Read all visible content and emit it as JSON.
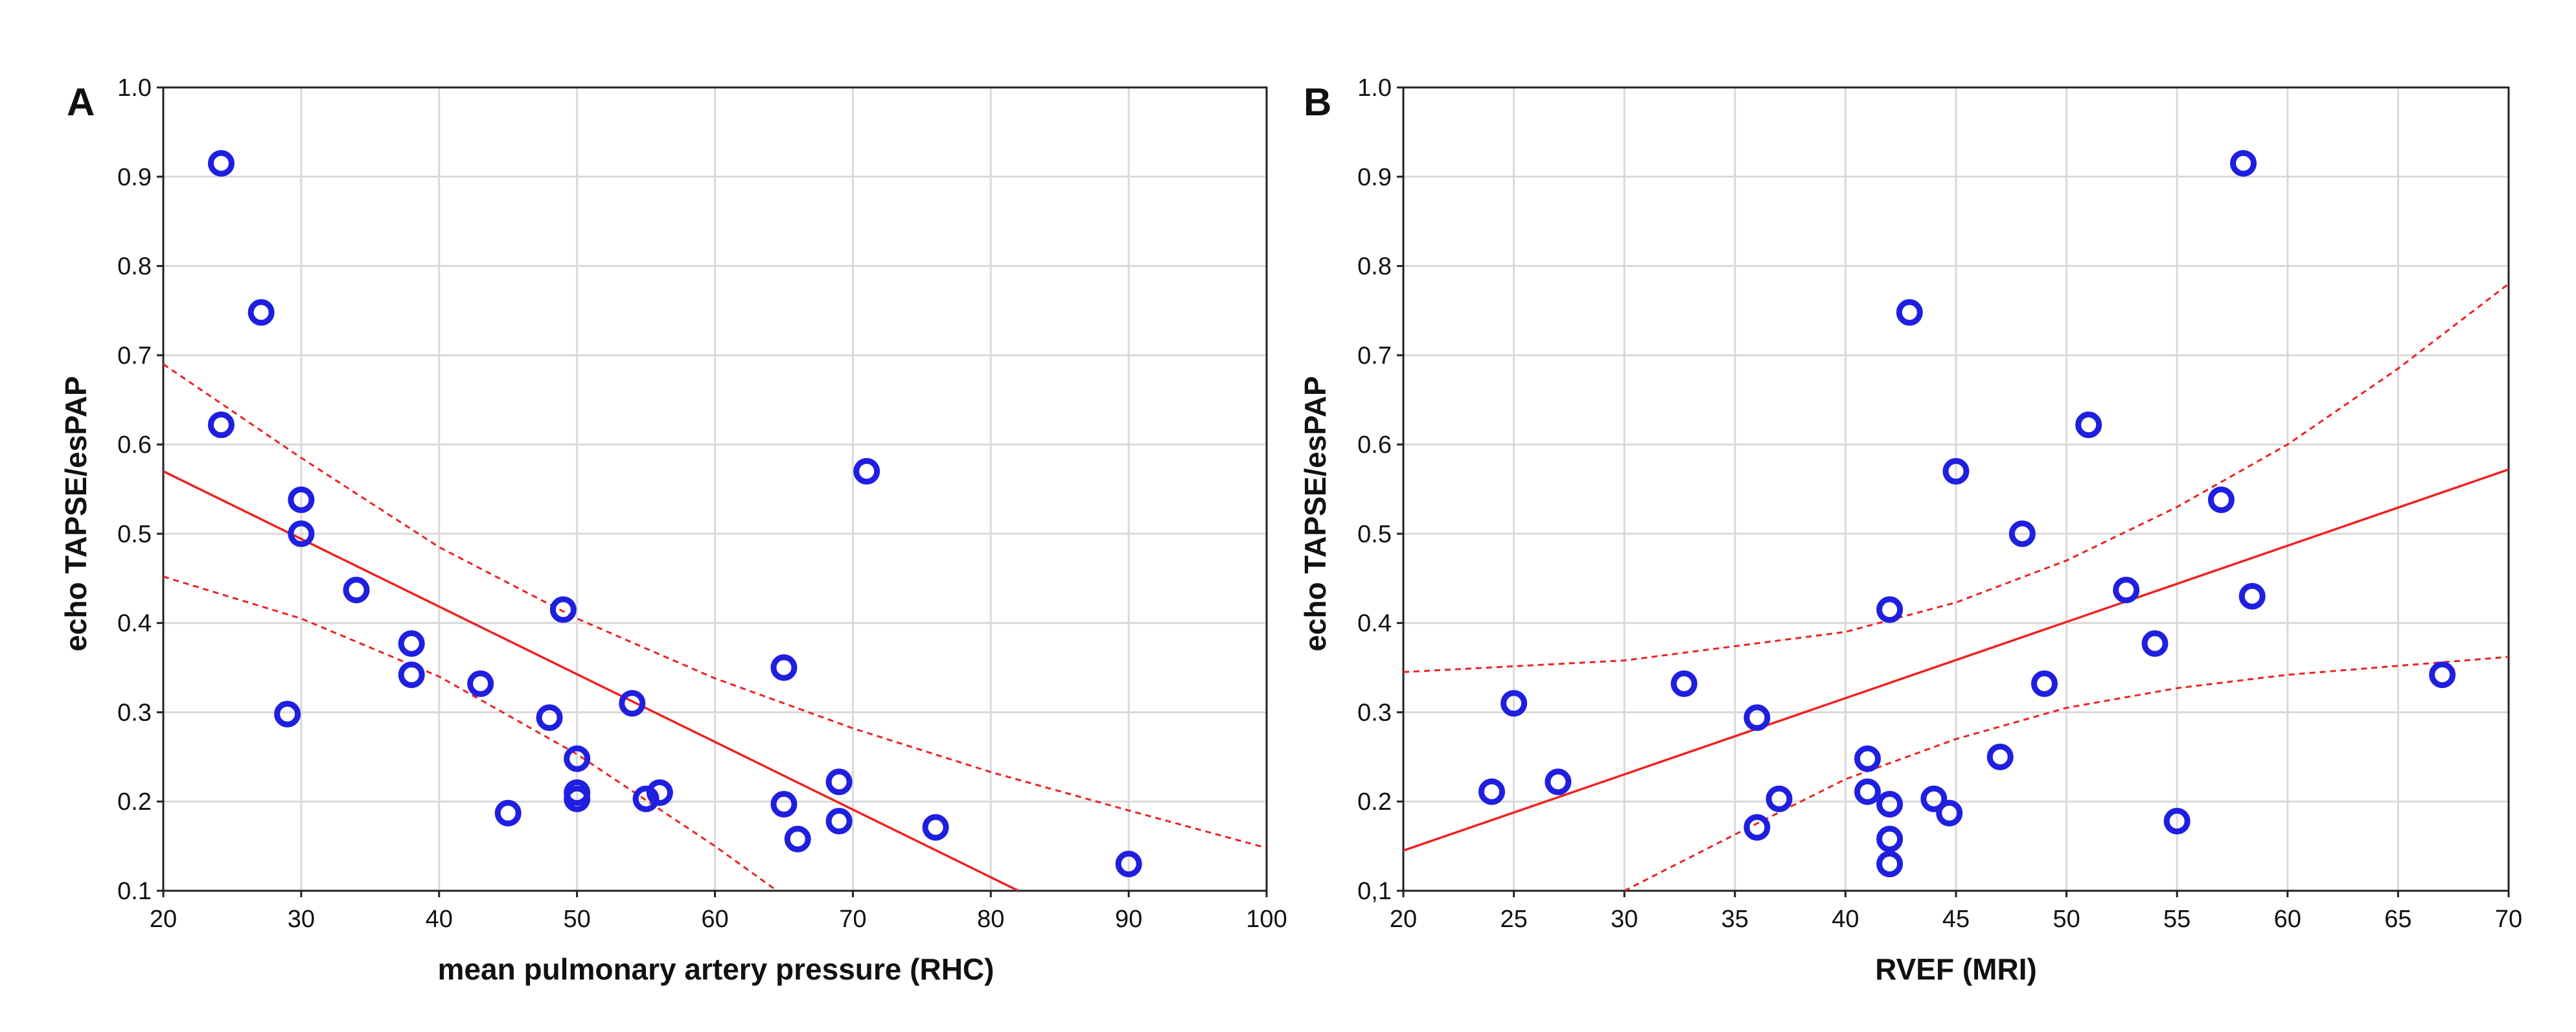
{
  "colors": {
    "points": "#1f1fe0",
    "fit": "#ee2222",
    "grid": "#d9d9d9"
  },
  "chart_data": [
    {
      "type": "scatter",
      "panel_label": "A",
      "title": "",
      "xlabel": "mean pulmonary artery pressure (RHC)",
      "ylabel": "echo TAPSE/esPAP",
      "xlim": [
        20,
        100
      ],
      "ylim": [
        0.1,
        1.0
      ],
      "xticks": [
        20,
        30,
        40,
        50,
        60,
        70,
        80,
        90,
        100
      ],
      "xtick_labels": [
        "20",
        "30",
        "40",
        "50",
        "60",
        "70",
        "80",
        "90",
        "100"
      ],
      "yticks": [
        0.1,
        0.2,
        0.3,
        0.4,
        0.5,
        0.6,
        0.7,
        0.8,
        0.9,
        1.0
      ],
      "ytick_labels": [
        "0.1",
        "0.2",
        "0.3",
        "0.4",
        "0.5",
        "0.6",
        "0.7",
        "0.8",
        "0.9",
        "1.0"
      ],
      "grid": true,
      "points": [
        [
          24.2,
          0.915
        ],
        [
          27.1,
          0.748
        ],
        [
          24.2,
          0.622
        ],
        [
          30.0,
          0.538
        ],
        [
          30.0,
          0.5
        ],
        [
          34.0,
          0.437
        ],
        [
          29.0,
          0.298
        ],
        [
          38.0,
          0.377
        ],
        [
          38.0,
          0.342
        ],
        [
          43.0,
          0.332
        ],
        [
          48.0,
          0.294
        ],
        [
          49.0,
          0.415
        ],
        [
          50.0,
          0.248
        ],
        [
          50.0,
          0.21
        ],
        [
          50.0,
          0.203
        ],
        [
          45.0,
          0.187
        ],
        [
          54.0,
          0.31
        ],
        [
          55.0,
          0.203
        ],
        [
          56.0,
          0.21
        ],
        [
          65.0,
          0.35
        ],
        [
          65.0,
          0.197
        ],
        [
          66.0,
          0.158
        ],
        [
          69.0,
          0.222
        ],
        [
          69.0,
          0.178
        ],
        [
          71.0,
          0.57
        ],
        [
          76.0,
          0.171
        ],
        [
          90.0,
          0.13
        ]
      ],
      "fit_line": [
        [
          20,
          0.57
        ],
        [
          82,
          0.1
        ]
      ],
      "ci_upper": [
        [
          20,
          0.69
        ],
        [
          30,
          0.585
        ],
        [
          40,
          0.485
        ],
        [
          50,
          0.405
        ],
        [
          60,
          0.338
        ],
        [
          70,
          0.282
        ],
        [
          80,
          0.233
        ],
        [
          90,
          0.19
        ],
        [
          100,
          0.148
        ]
      ],
      "ci_lower": [
        [
          20,
          0.452
        ],
        [
          30,
          0.405
        ],
        [
          40,
          0.34
        ],
        [
          50,
          0.253
        ],
        [
          60,
          0.15
        ],
        [
          64.5,
          0.1
        ]
      ]
    },
    {
      "type": "scatter",
      "panel_label": "B",
      "title": "",
      "xlabel": "RVEF (MRI)",
      "ylabel": "echo TAPSE/esPAP",
      "xlim": [
        20,
        70
      ],
      "ylim": [
        0.1,
        1.0
      ],
      "xticks": [
        20,
        25,
        30,
        35,
        40,
        45,
        50,
        55,
        60,
        65,
        70
      ],
      "xtick_labels": [
        "20",
        "25",
        "30",
        "35",
        "40",
        "45",
        "50",
        "55",
        "60",
        "65",
        "70"
      ],
      "yticks": [
        0.1,
        0.2,
        0.3,
        0.4,
        0.5,
        0.6,
        0.7,
        0.8,
        0.9,
        1.0
      ],
      "ytick_labels": [
        "0,1",
        "0.2",
        "0.3",
        "0.4",
        "0.5",
        "0.6",
        "0.7",
        "0.8",
        "0.9",
        "1.0"
      ],
      "grid": true,
      "points": [
        [
          58.0,
          0.915
        ],
        [
          42.9,
          0.748
        ],
        [
          51.0,
          0.622
        ],
        [
          45.0,
          0.57
        ],
        [
          57.0,
          0.538
        ],
        [
          48.0,
          0.5
        ],
        [
          52.7,
          0.437
        ],
        [
          58.4,
          0.43
        ],
        [
          42.0,
          0.415
        ],
        [
          54.0,
          0.377
        ],
        [
          67.0,
          0.342
        ],
        [
          32.7,
          0.332
        ],
        [
          49.0,
          0.332
        ],
        [
          25.0,
          0.31
        ],
        [
          36.0,
          0.294
        ],
        [
          41.0,
          0.248
        ],
        [
          47.0,
          0.25
        ],
        [
          27.0,
          0.222
        ],
        [
          24.0,
          0.211
        ],
        [
          41.0,
          0.211
        ],
        [
          37.0,
          0.203
        ],
        [
          42.0,
          0.197
        ],
        [
          44.0,
          0.203
        ],
        [
          44.7,
          0.187
        ],
        [
          36.0,
          0.171
        ],
        [
          55.0,
          0.178
        ],
        [
          42.0,
          0.158
        ],
        [
          42.0,
          0.13
        ]
      ],
      "fit_line": [
        [
          20,
          0.145
        ],
        [
          70,
          0.572
        ]
      ],
      "ci_upper": [
        [
          20,
          0.345
        ],
        [
          30,
          0.358
        ],
        [
          40,
          0.39
        ],
        [
          45,
          0.423
        ],
        [
          50,
          0.47
        ],
        [
          55,
          0.53
        ],
        [
          60,
          0.6
        ],
        [
          65,
          0.685
        ],
        [
          70,
          0.78
        ]
      ],
      "ci_lower": [
        [
          30,
          0.1
        ],
        [
          35,
          0.163
        ],
        [
          40,
          0.225
        ],
        [
          45,
          0.27
        ],
        [
          50,
          0.305
        ],
        [
          55,
          0.327
        ],
        [
          60,
          0.342
        ],
        [
          65,
          0.352
        ],
        [
          70,
          0.362
        ]
      ]
    }
  ]
}
